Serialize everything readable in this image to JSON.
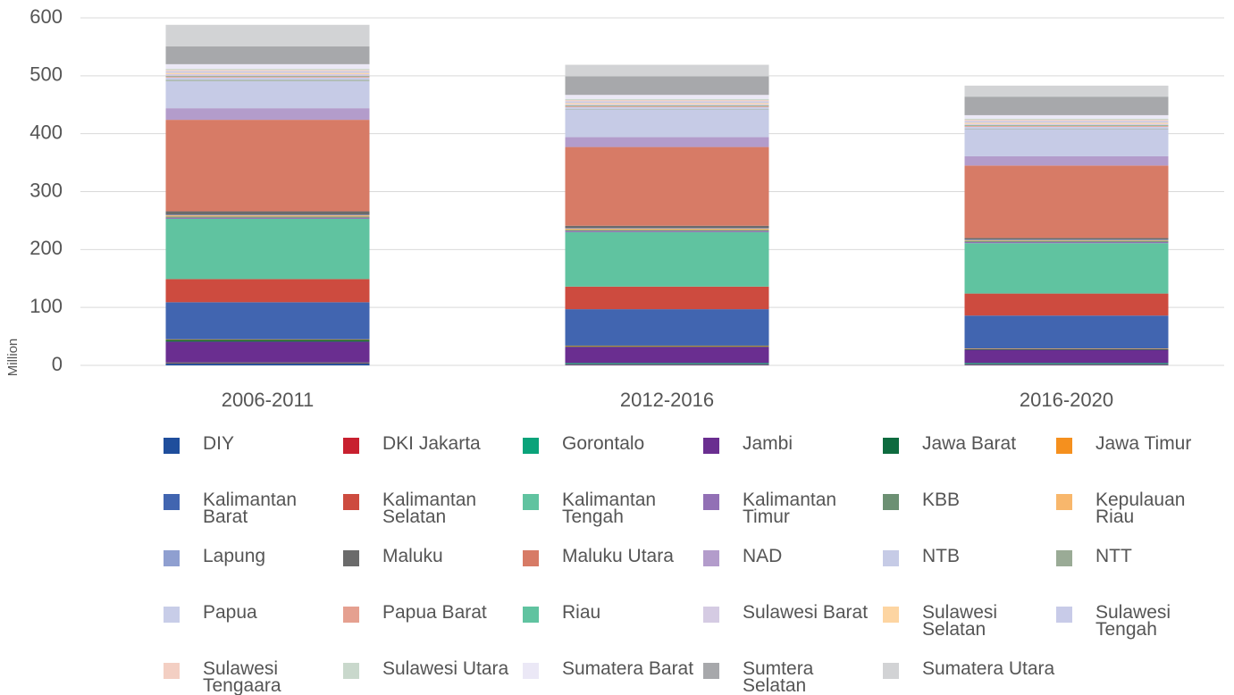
{
  "chart_data": {
    "type": "stacked_bar",
    "y_label": "Million",
    "categories": [
      "2006-2011",
      "2012-2016",
      "2016-2020"
    ],
    "ylim": [
      0,
      600
    ],
    "yticks": [
      0,
      100,
      200,
      300,
      400,
      500,
      600
    ],
    "grid": true,
    "series": [
      {
        "name": "DIY",
        "color": "#1f4e9c",
        "values": [
          3,
          1,
          1
        ]
      },
      {
        "name": "DKI Jakarta",
        "color": "#c8202f",
        "values": [
          1,
          1,
          1
        ]
      },
      {
        "name": "Gorontalo",
        "color": "#0aa37a",
        "values": [
          1,
          2,
          2
        ]
      },
      {
        "name": "Jambi",
        "color": "#6a2e90",
        "values": [
          36,
          28,
          23
        ]
      },
      {
        "name": "Jawa Barat",
        "color": "#0e6b3f",
        "values": [
          3,
          1,
          1
        ]
      },
      {
        "name": "Jawa Timur",
        "color": "#f5901e",
        "values": [
          1,
          1,
          1
        ]
      },
      {
        "name": "Kalimantan Barat",
        "color": "#4165b0",
        "values": [
          64,
          63,
          57
        ]
      },
      {
        "name": "Kalimantan Selatan",
        "color": "#cd4b3f",
        "values": [
          40,
          39,
          38
        ]
      },
      {
        "name": "Kalimantan Tengah",
        "color": "#60c3a0",
        "values": [
          104,
          94,
          87
        ]
      },
      {
        "name": "Kalimantan Timur",
        "color": "#9270b5",
        "values": [
          2,
          2,
          2
        ]
      },
      {
        "name": "KBB",
        "color": "#6c9073",
        "values": [
          2,
          2,
          2
        ]
      },
      {
        "name": "Kepulauan Riau",
        "color": "#f8b76c",
        "values": [
          2,
          2,
          1
        ]
      },
      {
        "name": "Lapung",
        "color": "#8f9fd0",
        "values": [
          1,
          1,
          1
        ]
      },
      {
        "name": "Maluku",
        "color": "#6b6b6b",
        "values": [
          6,
          4,
          3
        ]
      },
      {
        "name": "Maluku Utara",
        "color": "#d77b66",
        "values": [
          158,
          136,
          125
        ]
      },
      {
        "name": "NAD",
        "color": "#b39ccb",
        "values": [
          20,
          17,
          16
        ]
      },
      {
        "name": "NTB",
        "color": "#c6cbe6",
        "values": [
          47,
          48,
          47
        ]
      },
      {
        "name": "NTT",
        "color": "#9aab96",
        "values": [
          2,
          1,
          1
        ]
      },
      {
        "name": "Papua",
        "color": "#c8cde8",
        "values": [
          4,
          3,
          3
        ]
      },
      {
        "name": "Papua Barat",
        "color": "#e5a090",
        "values": [
          2,
          2,
          2
        ]
      },
      {
        "name": "Riau",
        "color": "#60c3a0",
        "values": [
          1,
          1,
          1
        ]
      },
      {
        "name": "Sulawesi Barat",
        "color": "#d5cbe3",
        "values": [
          3,
          2,
          2
        ]
      },
      {
        "name": "Sulawesi Selatan",
        "color": "#fdd5a2",
        "values": [
          2,
          2,
          2
        ]
      },
      {
        "name": "Sulawesi Tengah",
        "color": "#c8cbe8",
        "values": [
          3,
          3,
          3
        ]
      },
      {
        "name": "Sulawesi Tengaara",
        "color": "#f3cfc3",
        "values": [
          2,
          2,
          2
        ]
      },
      {
        "name": "Sulawesi Utara",
        "color": "#c9d8cc",
        "values": [
          2,
          2,
          2
        ]
      },
      {
        "name": "Sumatera Barat",
        "color": "#ebe8f6",
        "values": [
          8,
          7,
          6
        ]
      },
      {
        "name": "Sumtera Selatan",
        "color": "#a7a8ab",
        "values": [
          31,
          32,
          32
        ]
      },
      {
        "name": "Sumatera Utara",
        "color": "#d2d3d5",
        "values": [
          37,
          20,
          19
        ]
      }
    ]
  }
}
